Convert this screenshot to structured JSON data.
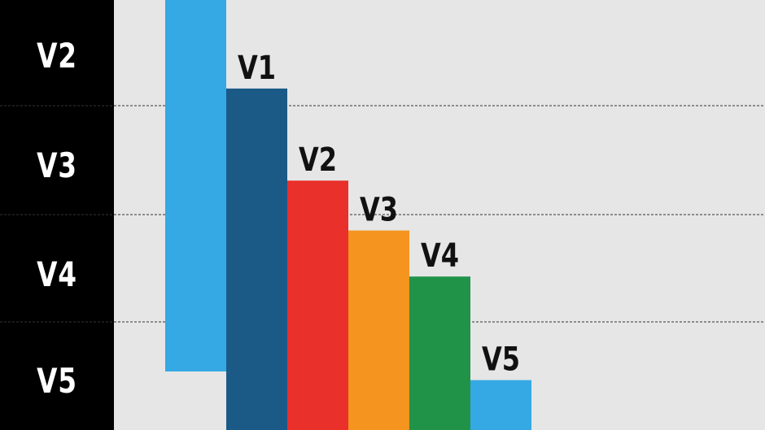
{
  "sidebar": {
    "labels": [
      "V2",
      "V3",
      "V4",
      "V5"
    ]
  },
  "colors": {
    "background": "#e6e6e6",
    "sidebar": "#000000",
    "gridline": "#333333",
    "label": "#111111"
  },
  "chart_data": {
    "type": "bar",
    "title": "",
    "xlabel": "",
    "ylabel": "",
    "grid": "dashed horizontal lines at sidebar row boundaries",
    "series": [
      {
        "categories": [
          "",
          "V1",
          "V2",
          "V3",
          "V4",
          "V5"
        ],
        "values": [
          100,
          89,
          65,
          52,
          40,
          13
        ],
        "colors": [
          "#35a9e4",
          "#1b5a87",
          "#e9302a",
          "#f5941e",
          "#219349",
          "#35a9e4"
        ]
      }
    ],
    "notes": "The first (light blue) bar is cut off at both the top and bottom of the frame and has no label."
  }
}
